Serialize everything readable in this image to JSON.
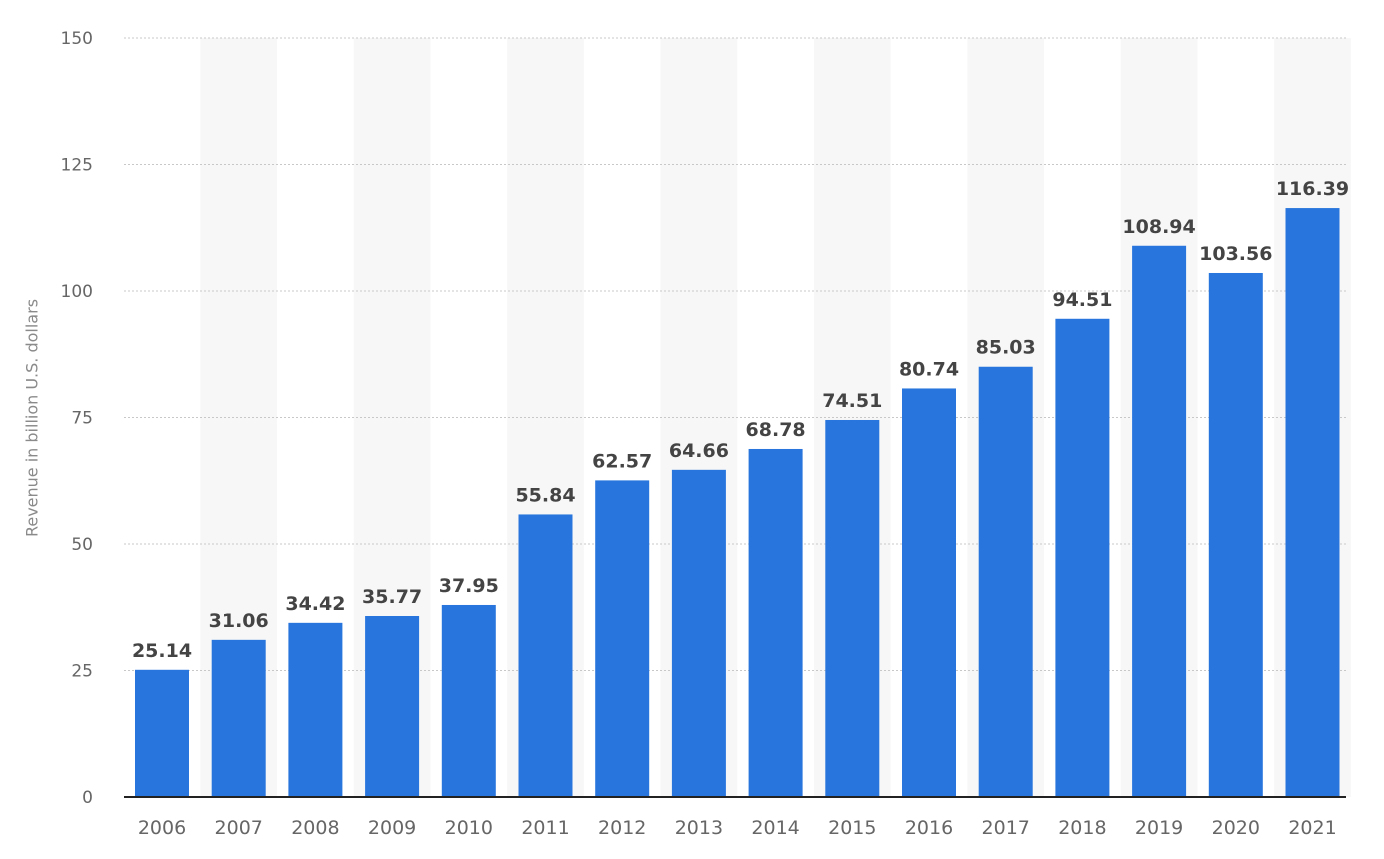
{
  "chart_data": {
    "type": "bar",
    "categories": [
      "2006",
      "2007",
      "2008",
      "2009",
      "2010",
      "2011",
      "2012",
      "2013",
      "2014",
      "2015",
      "2016",
      "2017",
      "2018",
      "2019",
      "2020",
      "2021"
    ],
    "values": [
      25.14,
      31.06,
      34.42,
      35.77,
      37.95,
      55.84,
      62.57,
      64.66,
      68.78,
      74.51,
      80.74,
      85.03,
      94.51,
      108.94,
      103.56,
      116.39
    ],
    "value_labels": [
      "25.14",
      "31.06",
      "34.42",
      "35.77",
      "37.95",
      "55.84",
      "62.57",
      "64.66",
      "68.78",
      "74.51",
      "80.74",
      "85.03",
      "94.51",
      "108.94",
      "103.56",
      "116.39"
    ],
    "ylabel": "Revenue in billion U.S. dollars",
    "ylim": [
      0,
      150
    ],
    "yticks": [
      "0",
      "25",
      "50",
      "75",
      "100",
      "125",
      "150"
    ],
    "grid": true,
    "alternating_column_bands": true,
    "colors": {
      "bar": "#2876dd",
      "band": "#f7f7f7",
      "grid": "#c8c8c8",
      "axis": "#222222",
      "tick_text": "#666666",
      "value_text": "#444444"
    }
  }
}
